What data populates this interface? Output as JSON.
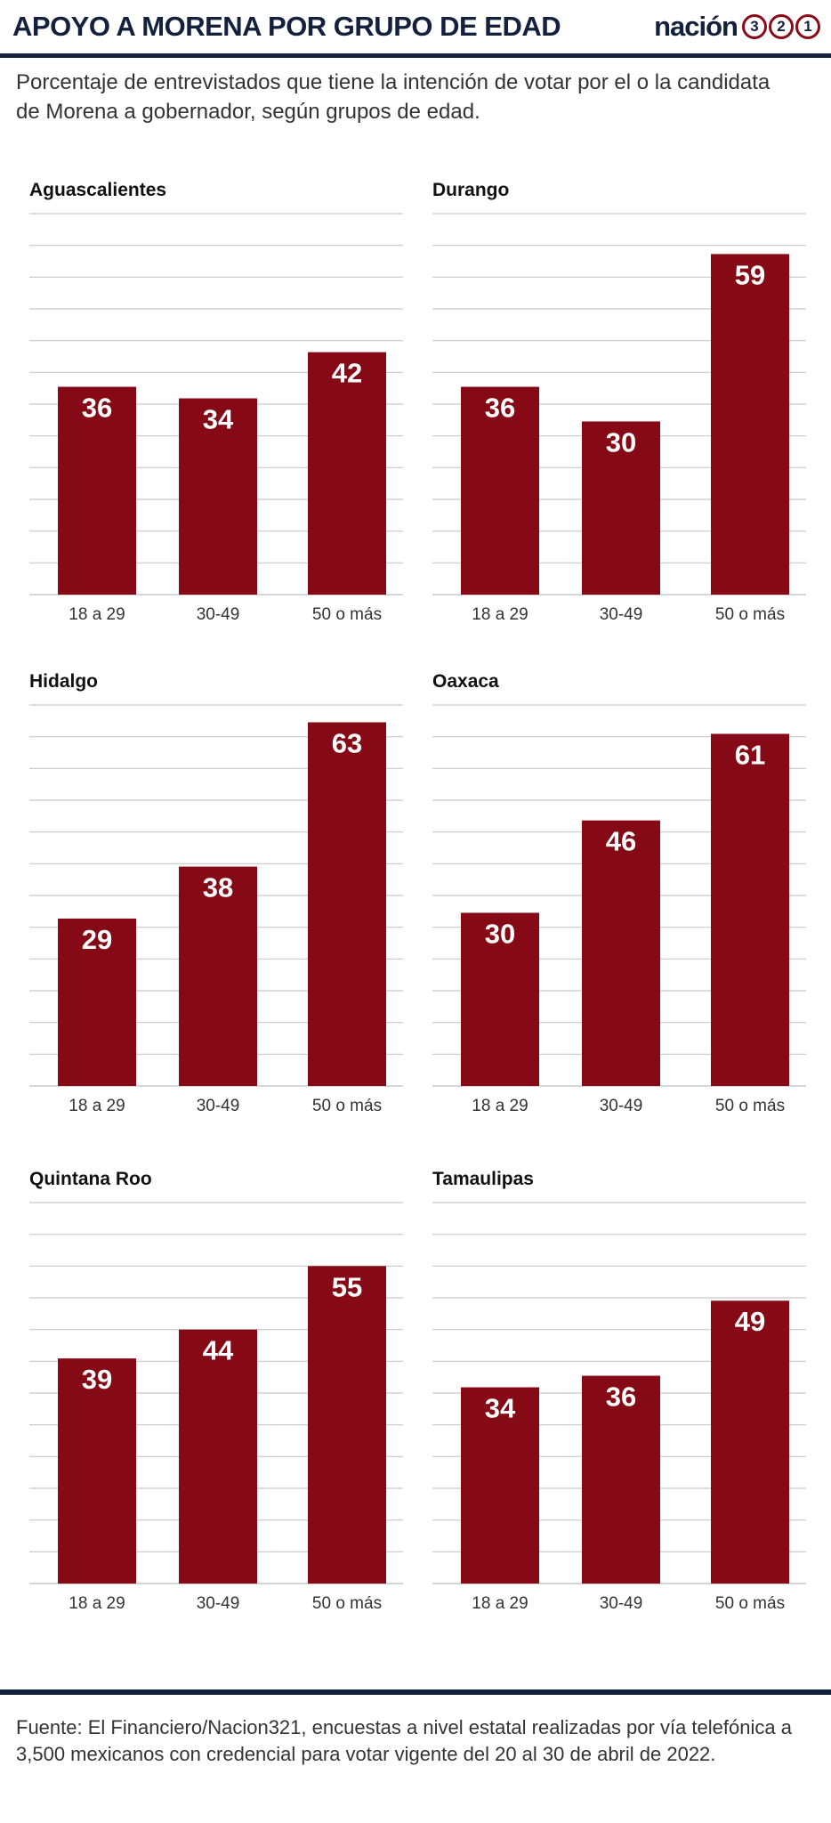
{
  "header": {
    "title": "APOYO A MORENA POR GRUPO DE EDAD",
    "logo_word": "nación",
    "logo_digits": [
      "3",
      "2",
      "1"
    ]
  },
  "subtitle": "Porcentaje de entrevistados que tiene la intención de votar por el  o la candidata de Morena a gobernador, según grupos de edad.",
  "footer": "Fuente: El Financiero/Nacion321, encuestas a nivel estatal realizadas por vía telefónica a 3,500 mexicanos con credencial para votar vigente del 20 al 30 de abril de 2022.",
  "colors": {
    "bar": "#850a15",
    "grid": "#c8c8c8",
    "navy": "#14213d"
  },
  "chart_data": [
    {
      "type": "bar",
      "title": "Aguascalientes",
      "categories": [
        "18 a 29",
        "30-49",
        "50 o más"
      ],
      "values": [
        36,
        34,
        42
      ],
      "ylim": [
        0,
        66
      ],
      "grid": true
    },
    {
      "type": "bar",
      "title": "Durango",
      "categories": [
        "18 a 29",
        "30-49",
        "50 o más"
      ],
      "values": [
        36,
        30,
        59
      ],
      "ylim": [
        0,
        66
      ],
      "grid": true
    },
    {
      "type": "bar",
      "title": "Hidalgo",
      "categories": [
        "18 a 29",
        "30-49",
        "50 o más"
      ],
      "values": [
        29,
        38,
        63
      ],
      "ylim": [
        0,
        66
      ],
      "grid": true
    },
    {
      "type": "bar",
      "title": "Oaxaca",
      "categories": [
        "18 a 29",
        "30-49",
        "50 o más"
      ],
      "values": [
        30,
        46,
        61
      ],
      "ylim": [
        0,
        66
      ],
      "grid": true
    },
    {
      "type": "bar",
      "title": "Quintana Roo",
      "categories": [
        "18 a 29",
        "30-49",
        "50 o más"
      ],
      "values": [
        39,
        44,
        55
      ],
      "ylim": [
        0,
        66
      ],
      "grid": true
    },
    {
      "type": "bar",
      "title": "Tamaulipas",
      "categories": [
        "18 a 29",
        "30-49",
        "50 o más"
      ],
      "values": [
        34,
        36,
        49
      ],
      "ylim": [
        0,
        66
      ],
      "grid": true
    }
  ]
}
